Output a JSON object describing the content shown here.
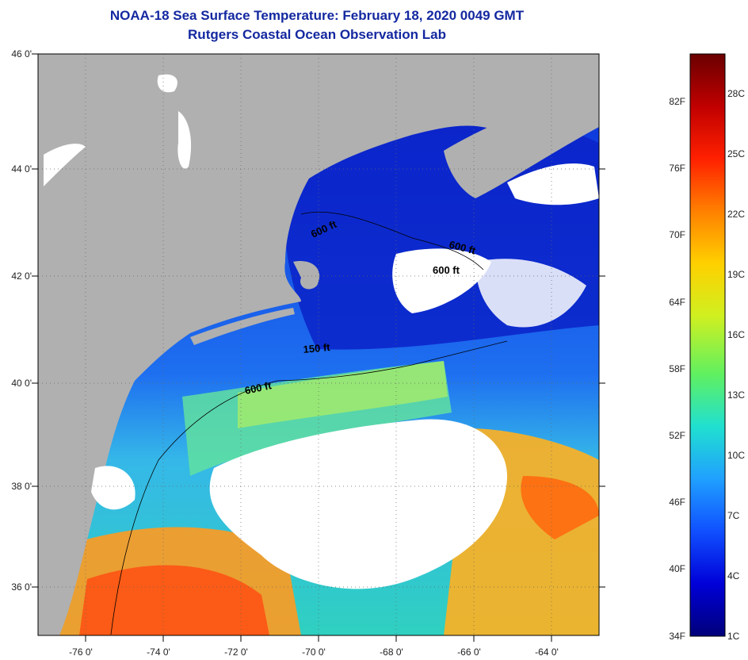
{
  "title": {
    "line1": "NOAA-18 Sea Surface Temperature:  February 18, 2020 0049 GMT",
    "line2": "Rutgers Coastal Ocean Observation Lab"
  },
  "map": {
    "lat_labels": [
      "46 0'",
      "44 0'",
      "42 0'",
      "40 0'",
      "38 0'",
      "36 0'"
    ],
    "lon_labels": [
      "-76 0'",
      "-74 0'",
      "-72 0'",
      "-70 0'",
      "-68 0'",
      "-66 0'",
      "-64 0'"
    ],
    "contour_labels": [
      "600 ft",
      "600 ft",
      "600 ft",
      "150 ft",
      "600 ft"
    ],
    "colors": {
      "land": "#b0b0b0",
      "cloud": "#ffffff",
      "cold_water": "#0a2ad8",
      "mid_water": "#1e6ff0",
      "warm_water": "#ff7a10"
    }
  },
  "colorbar": {
    "fahrenheit_labels": [
      "82F",
      "76F",
      "70F",
      "64F",
      "58F",
      "52F",
      "46F",
      "40F",
      "34F"
    ],
    "celsius_labels": [
      "28C",
      "25C",
      "22C",
      "19C",
      "16C",
      "13C",
      "10C",
      "7C",
      "4C",
      "1C"
    ],
    "gradient_stops": [
      "#00007a",
      "#0000d8",
      "#1050ff",
      "#20a0ff",
      "#20e0d0",
      "#60f060",
      "#d0f020",
      "#ffd000",
      "#ff8000",
      "#ff2000",
      "#c00000",
      "#6a0000"
    ]
  }
}
